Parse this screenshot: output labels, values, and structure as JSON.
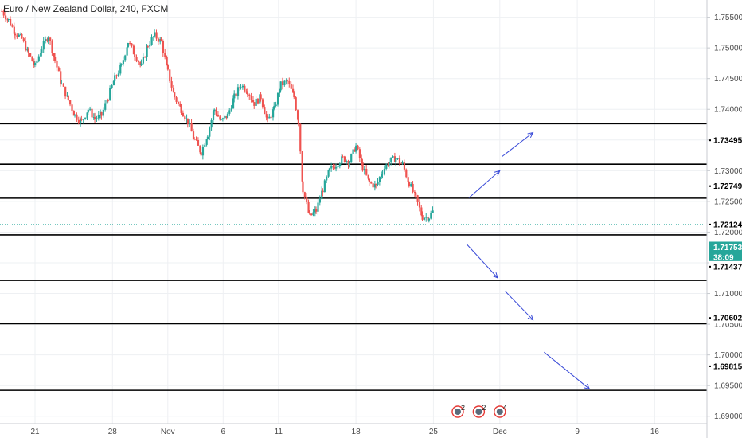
{
  "chart_data": {
    "type": "candlestick",
    "title": "Euro / New Zealand Dollar, 240, FXCM",
    "y_ticks": [
      "1.75500",
      "1.75000",
      "1.74500",
      "1.74000",
      "1.73500",
      "1.73000",
      "1.72500",
      "1.72000",
      "1.71500",
      "1.71000",
      "1.70500",
      "1.70000",
      "1.69500",
      "1.69000"
    ],
    "ylim": [
      1.6888,
      1.7578
    ],
    "x_ticks": [
      {
        "label": "21",
        "day": 0
      },
      {
        "label": "28",
        "day": 7
      },
      {
        "label": "Nov",
        "day": 12
      },
      {
        "label": "6",
        "day": 17
      },
      {
        "label": "11",
        "day": 22
      },
      {
        "label": "18",
        "day": 29
      },
      {
        "label": "25",
        "day": 36
      },
      {
        "label": "Dec",
        "day": 42
      },
      {
        "label": "9",
        "day": 49
      },
      {
        "label": "16",
        "day": 56
      }
    ],
    "horizontal_levels": [
      1.73766,
      1.73106,
      1.72552,
      1.71955,
      1.71213,
      1.70508,
      1.69423
    ],
    "price_labels": [
      {
        "text": "1.73495",
        "value": 1.73495,
        "style": "black"
      },
      {
        "text": "1.72749",
        "value": 1.72749,
        "style": "black"
      },
      {
        "text": "1.72124",
        "value": 1.72124,
        "style": "black"
      },
      {
        "text": "1.71753",
        "value": 1.71753,
        "style": "green"
      },
      {
        "text": "38:09",
        "value": 1.7159,
        "style": "green"
      },
      {
        "text": "1.71437",
        "value": 1.71437,
        "style": "black"
      },
      {
        "text": "1.70602",
        "value": 1.70602,
        "style": "black"
      },
      {
        "text": "1.69815",
        "value": 1.69815,
        "style": "black"
      }
    ],
    "current_price": 1.72124,
    "projection_arrows": [
      {
        "from": [
          39.2,
          1.72557
        ],
        "to": [
          42.0,
          1.73
        ]
      },
      {
        "from": [
          42.2,
          1.7323
        ],
        "to": [
          45.0,
          1.7362
        ]
      },
      {
        "from": [
          39.0,
          1.71805
        ],
        "to": [
          41.8,
          1.71255
        ]
      },
      {
        "from": [
          42.5,
          1.71035
        ],
        "to": [
          45.0,
          1.7057
        ]
      },
      {
        "from": [
          46.0,
          1.70045
        ],
        "to": [
          50.1,
          1.69445
        ]
      }
    ],
    "event_markers": [
      {
        "day": 38.2,
        "text": "2"
      },
      {
        "day": 40.1,
        "text": "2"
      },
      {
        "day": 42.0,
        "text": "4"
      }
    ],
    "up_color": "#26a69a",
    "down_color": "#ef5350",
    "level_color": "#000000",
    "arrow_color": "#3a4bd8",
    "price_path": [
      [
        -3.0,
        1.756
      ],
      [
        -2.4,
        1.7545
      ],
      [
        -1.8,
        1.7525
      ],
      [
        -1.2,
        1.7515
      ],
      [
        -0.6,
        1.749
      ],
      [
        0.0,
        1.747
      ],
      [
        0.6,
        1.75
      ],
      [
        1.2,
        1.752
      ],
      [
        1.8,
        1.748
      ],
      [
        2.4,
        1.744
      ],
      [
        3.0,
        1.7415
      ],
      [
        3.6,
        1.739
      ],
      [
        4.2,
        1.738
      ],
      [
        4.8,
        1.74
      ],
      [
        5.4,
        1.7385
      ],
      [
        6.0,
        1.739
      ],
      [
        6.6,
        1.742
      ],
      [
        7.2,
        1.745
      ],
      [
        7.8,
        1.747
      ],
      [
        8.4,
        1.751
      ],
      [
        9.0,
        1.749
      ],
      [
        9.6,
        1.747
      ],
      [
        10.2,
        1.7505
      ],
      [
        10.8,
        1.752
      ],
      [
        11.4,
        1.751
      ],
      [
        12.0,
        1.746
      ],
      [
        12.6,
        1.742
      ],
      [
        13.2,
        1.74
      ],
      [
        13.8,
        1.738
      ],
      [
        14.4,
        1.735
      ],
      [
        15.0,
        1.733
      ],
      [
        15.6,
        1.736
      ],
      [
        16.2,
        1.74
      ],
      [
        16.8,
        1.738
      ],
      [
        17.4,
        1.739
      ],
      [
        18.0,
        1.742
      ],
      [
        18.6,
        1.744
      ],
      [
        19.2,
        1.743
      ],
      [
        19.8,
        1.741
      ],
      [
        20.4,
        1.742
      ],
      [
        21.0,
        1.738
      ],
      [
        21.6,
        1.74
      ],
      [
        22.2,
        1.744
      ],
      [
        22.8,
        1.7445
      ],
      [
        23.4,
        1.742
      ],
      [
        23.8,
        1.738
      ],
      [
        24.2,
        1.727
      ],
      [
        24.8,
        1.7225
      ],
      [
        25.4,
        1.7235
      ],
      [
        26.0,
        1.727
      ],
      [
        26.6,
        1.73
      ],
      [
        27.2,
        1.731
      ],
      [
        27.8,
        1.732
      ],
      [
        28.4,
        1.7315
      ],
      [
        29.0,
        1.734
      ],
      [
        29.6,
        1.7305
      ],
      [
        30.2,
        1.728
      ],
      [
        30.8,
        1.7275
      ],
      [
        31.4,
        1.73
      ],
      [
        32.0,
        1.7315
      ],
      [
        32.6,
        1.732
      ],
      [
        33.2,
        1.731
      ],
      [
        33.8,
        1.728
      ],
      [
        34.4,
        1.7255
      ],
      [
        35.0,
        1.7225
      ],
      [
        35.6,
        1.7225
      ],
      [
        36.2,
        1.724
      ],
      [
        36.6,
        1.7215
      ],
      [
        37.0,
        1.721
      ]
    ]
  }
}
